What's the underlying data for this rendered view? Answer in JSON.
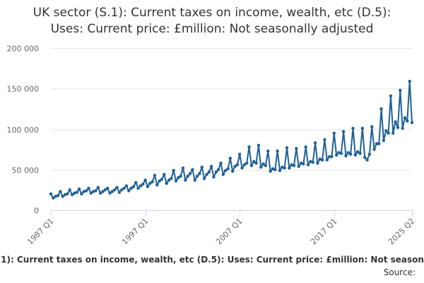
{
  "chart_data": {
    "type": "line",
    "title_line1": "UK sector (S.1): Current taxes on income, wealth, etc (D.5):",
    "title_line2": "Uses: Current price: £million: Not seasonally adjusted",
    "xlabel": "",
    "ylabel": "",
    "ylim": [
      0,
      200000
    ],
    "yticks": [
      0,
      50000,
      100000,
      150000,
      200000
    ],
    "ytick_labels": [
      "0",
      "50 000",
      "100 000",
      "150 000",
      "200 000"
    ],
    "xtick_labels": [
      "1987 Q1",
      "1997 Q1",
      "2007 Q1",
      "2017 Q1",
      "2025 Q2"
    ],
    "xtick_indices": [
      0,
      40,
      80,
      120,
      153
    ],
    "grid": true,
    "legend_position": "bottom",
    "source_label": "Source:",
    "series": [
      {
        "name": "UK sector (S.1): Current taxes on income, wealth, etc (D.5): Uses: Current price: £million: Not seasonally adjusted",
        "color": "#206095",
        "x_start": "1987 Q1",
        "x_end": "2025 Q2",
        "values": [
          20000,
          15000,
          17000,
          18000,
          23000,
          17000,
          19000,
          20000,
          25000,
          19000,
          21000,
          22000,
          26000,
          20000,
          23000,
          24000,
          27000,
          21000,
          23000,
          24000,
          28000,
          21000,
          23000,
          25000,
          27000,
          21000,
          23000,
          25000,
          28000,
          22000,
          25000,
          27000,
          30000,
          24000,
          27000,
          29000,
          34000,
          27000,
          30000,
          32000,
          37000,
          29000,
          33000,
          35000,
          43000,
          31000,
          36000,
          38000,
          44000,
          33000,
          37000,
          39000,
          49000,
          36000,
          40000,
          42000,
          52000,
          37000,
          42000,
          45000,
          50000,
          37000,
          42000,
          45000,
          53000,
          39000,
          44000,
          47000,
          54000,
          41000,
          47000,
          50000,
          58000,
          44000,
          49000,
          51000,
          64000,
          48000,
          54000,
          56000,
          69000,
          52000,
          56000,
          58000,
          78000,
          55000,
          60000,
          58000,
          80000,
          53000,
          57000,
          55000,
          73000,
          48000,
          51000,
          50000,
          73000,
          49000,
          53000,
          52000,
          77000,
          52000,
          56000,
          55000,
          76000,
          54000,
          58000,
          57000,
          78000,
          56000,
          60000,
          59000,
          83000,
          58000,
          63000,
          62000,
          87000,
          62000,
          66000,
          66000,
          95000,
          68000,
          71000,
          70000,
          97000,
          67000,
          71000,
          69000,
          101000,
          68000,
          72000,
          70000,
          101000,
          65000,
          62000,
          69000,
          103000,
          75000,
          82000,
          82000,
          125000,
          86000,
          98000,
          95000,
          141000,
          95000,
          109000,
          102000,
          148000,
          101000,
          114000,
          110000,
          159000,
          108000
        ]
      }
    ]
  }
}
